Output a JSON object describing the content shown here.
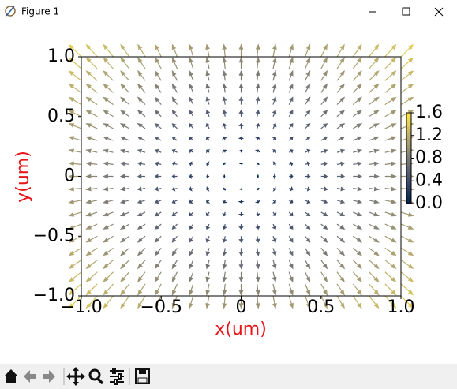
{
  "window_title": "Figure 1",
  "chart_data": {
    "type": "quiver",
    "xlabel": "x(um)",
    "ylabel": "y(um)",
    "xlim": [
      -1,
      1
    ],
    "ylim": [
      -1,
      1
    ],
    "xticks": [
      {
        "value": -1,
        "label": "−1.0"
      },
      {
        "value": -0.5,
        "label": "−0.5"
      },
      0,
      0.5,
      {
        "value": 1,
        "label": "1.0"
      }
    ],
    "yticks": [
      {
        "value": -1,
        "label": "−1.0"
      },
      {
        "value": -0.5,
        "label": "−0.5"
      },
      0,
      0.5,
      {
        "value": 1,
        "label": "1.0"
      }
    ],
    "clim": [
      0,
      1.6
    ],
    "cticks": [
      {
        "value": 0,
        "label": "0.0"
      },
      0.4,
      0.8,
      1.2,
      1.6
    ],
    "x": [
      -1,
      -0.9,
      -0.8,
      -0.7,
      -0.6,
      -0.5,
      -0.4,
      -0.3,
      -0.2,
      -0.1,
      0,
      0.1,
      0.2,
      0.3,
      0.4,
      0.5,
      0.6,
      0.7,
      0.8,
      0.9,
      1
    ],
    "y": [
      -1,
      -0.9,
      -0.8,
      -0.7,
      -0.6,
      -0.5,
      -0.4,
      -0.3,
      -0.2,
      -0.1,
      0,
      0.1,
      0.2,
      0.3,
      0.4,
      0.5,
      0.6,
      0.7,
      0.8,
      0.9,
      1
    ],
    "u": [
      [
        -1,
        -0.9,
        -0.8,
        -0.7,
        -0.6,
        -0.5,
        -0.4,
        -0.3,
        -0.2,
        -0.1,
        0,
        0.1,
        0.2,
        0.3,
        0.4,
        0.5,
        0.6,
        0.7,
        0.8,
        0.9,
        1
      ],
      [
        -1,
        -0.9,
        -0.8,
        -0.7,
        -0.6,
        -0.5,
        -0.4,
        -0.3,
        -0.2,
        -0.1,
        0,
        0.1,
        0.2,
        0.3,
        0.4,
        0.5,
        0.6,
        0.7,
        0.8,
        0.9,
        1
      ],
      [
        -1,
        -0.9,
        -0.8,
        -0.7,
        -0.6,
        -0.5,
        -0.4,
        -0.3,
        -0.2,
        -0.1,
        0,
        0.1,
        0.2,
        0.3,
        0.4,
        0.5,
        0.6,
        0.7,
        0.8,
        0.9,
        1
      ],
      [
        -1,
        -0.9,
        -0.8,
        -0.7,
        -0.6,
        -0.5,
        -0.4,
        -0.3,
        -0.2,
        -0.1,
        0,
        0.1,
        0.2,
        0.3,
        0.4,
        0.5,
        0.6,
        0.7,
        0.8,
        0.9,
        1
      ],
      [
        -1,
        -0.9,
        -0.8,
        -0.7,
        -0.6,
        -0.5,
        -0.4,
        -0.3,
        -0.2,
        -0.1,
        0,
        0.1,
        0.2,
        0.3,
        0.4,
        0.5,
        0.6,
        0.7,
        0.8,
        0.9,
        1
      ],
      [
        -1,
        -0.9,
        -0.8,
        -0.7,
        -0.6,
        -0.5,
        -0.4,
        -0.3,
        -0.2,
        -0.1,
        0,
        0.1,
        0.2,
        0.3,
        0.4,
        0.5,
        0.6,
        0.7,
        0.8,
        0.9,
        1
      ],
      [
        -1,
        -0.9,
        -0.8,
        -0.7,
        -0.6,
        -0.5,
        -0.4,
        -0.3,
        -0.2,
        -0.1,
        0,
        0.1,
        0.2,
        0.3,
        0.4,
        0.5,
        0.6,
        0.7,
        0.8,
        0.9,
        1
      ],
      [
        -1,
        -0.9,
        -0.8,
        -0.7,
        -0.6,
        -0.5,
        -0.4,
        -0.3,
        -0.2,
        -0.1,
        0,
        0.1,
        0.2,
        0.3,
        0.4,
        0.5,
        0.6,
        0.7,
        0.8,
        0.9,
        1
      ],
      [
        -1,
        -0.9,
        -0.8,
        -0.7,
        -0.6,
        -0.5,
        -0.4,
        -0.3,
        -0.2,
        -0.1,
        0,
        0.1,
        0.2,
        0.3,
        0.4,
        0.5,
        0.6,
        0.7,
        0.8,
        0.9,
        1
      ],
      [
        -1,
        -0.9,
        -0.8,
        -0.7,
        -0.6,
        -0.5,
        -0.4,
        -0.3,
        -0.2,
        -0.1,
        0,
        0.1,
        0.2,
        0.3,
        0.4,
        0.5,
        0.6,
        0.7,
        0.8,
        0.9,
        1
      ],
      [
        -1,
        -0.9,
        -0.8,
        -0.7,
        -0.6,
        -0.5,
        -0.4,
        -0.3,
        -0.2,
        -0.1,
        0,
        0.1,
        0.2,
        0.3,
        0.4,
        0.5,
        0.6,
        0.7,
        0.8,
        0.9,
        1
      ],
      [
        -1,
        -0.9,
        -0.8,
        -0.7,
        -0.6,
        -0.5,
        -0.4,
        -0.3,
        -0.2,
        -0.1,
        0,
        0.1,
        0.2,
        0.3,
        0.4,
        0.5,
        0.6,
        0.7,
        0.8,
        0.9,
        1
      ],
      [
        -1,
        -0.9,
        -0.8,
        -0.7,
        -0.6,
        -0.5,
        -0.4,
        -0.3,
        -0.2,
        -0.1,
        0,
        0.1,
        0.2,
        0.3,
        0.4,
        0.5,
        0.6,
        0.7,
        0.8,
        0.9,
        1
      ],
      [
        -1,
        -0.9,
        -0.8,
        -0.7,
        -0.6,
        -0.5,
        -0.4,
        -0.3,
        -0.2,
        -0.1,
        0,
        0.1,
        0.2,
        0.3,
        0.4,
        0.5,
        0.6,
        0.7,
        0.8,
        0.9,
        1
      ],
      [
        -1,
        -0.9,
        -0.8,
        -0.7,
        -0.6,
        -0.5,
        -0.4,
        -0.3,
        -0.2,
        -0.1,
        0,
        0.1,
        0.2,
        0.3,
        0.4,
        0.5,
        0.6,
        0.7,
        0.8,
        0.9,
        1
      ],
      [
        -1,
        -0.9,
        -0.8,
        -0.7,
        -0.6,
        -0.5,
        -0.4,
        -0.3,
        -0.2,
        -0.1,
        0,
        0.1,
        0.2,
        0.3,
        0.4,
        0.5,
        0.6,
        0.7,
        0.8,
        0.9,
        1
      ],
      [
        -1,
        -0.9,
        -0.8,
        -0.7,
        -0.6,
        -0.5,
        -0.4,
        -0.3,
        -0.2,
        -0.1,
        0,
        0.1,
        0.2,
        0.3,
        0.4,
        0.5,
        0.6,
        0.7,
        0.8,
        0.9,
        1
      ],
      [
        -1,
        -0.9,
        -0.8,
        -0.7,
        -0.6,
        -0.5,
        -0.4,
        -0.3,
        -0.2,
        -0.1,
        0,
        0.1,
        0.2,
        0.3,
        0.4,
        0.5,
        0.6,
        0.7,
        0.8,
        0.9,
        1
      ],
      [
        -1,
        -0.9,
        -0.8,
        -0.7,
        -0.6,
        -0.5,
        -0.4,
        -0.3,
        -0.2,
        -0.1,
        0,
        0.1,
        0.2,
        0.3,
        0.4,
        0.5,
        0.6,
        0.7,
        0.8,
        0.9,
        1
      ],
      [
        -1,
        -0.9,
        -0.8,
        -0.7,
        -0.6,
        -0.5,
        -0.4,
        -0.3,
        -0.2,
        -0.1,
        0,
        0.1,
        0.2,
        0.3,
        0.4,
        0.5,
        0.6,
        0.7,
        0.8,
        0.9,
        1
      ],
      [
        -1,
        -0.9,
        -0.8,
        -0.7,
        -0.6,
        -0.5,
        -0.4,
        -0.3,
        -0.2,
        -0.1,
        0,
        0.1,
        0.2,
        0.3,
        0.4,
        0.5,
        0.6,
        0.7,
        0.8,
        0.9,
        1
      ]
    ],
    "v": [
      [
        -1,
        -1,
        -1,
        -1,
        -1,
        -1,
        -1,
        -1,
        -1,
        -1,
        -1,
        -1,
        -1,
        -1,
        -1,
        -1,
        -1,
        -1,
        -1,
        -1,
        -1
      ],
      [
        -0.9,
        -0.9,
        -0.9,
        -0.9,
        -0.9,
        -0.9,
        -0.9,
        -0.9,
        -0.9,
        -0.9,
        -0.9,
        -0.9,
        -0.9,
        -0.9,
        -0.9,
        -0.9,
        -0.9,
        -0.9,
        -0.9,
        -0.9,
        -0.9
      ],
      [
        -0.8,
        -0.8,
        -0.8,
        -0.8,
        -0.8,
        -0.8,
        -0.8,
        -0.8,
        -0.8,
        -0.8,
        -0.8,
        -0.8,
        -0.8,
        -0.8,
        -0.8,
        -0.8,
        -0.8,
        -0.8,
        -0.8,
        -0.8,
        -0.8
      ],
      [
        -0.7,
        -0.7,
        -0.7,
        -0.7,
        -0.7,
        -0.7,
        -0.7,
        -0.7,
        -0.7,
        -0.7,
        -0.7,
        -0.7,
        -0.7,
        -0.7,
        -0.7,
        -0.7,
        -0.7,
        -0.7,
        -0.7,
        -0.7,
        -0.7
      ],
      [
        -0.6,
        -0.6,
        -0.6,
        -0.6,
        -0.6,
        -0.6,
        -0.6,
        -0.6,
        -0.6,
        -0.6,
        -0.6,
        -0.6,
        -0.6,
        -0.6,
        -0.6,
        -0.6,
        -0.6,
        -0.6,
        -0.6,
        -0.6,
        -0.6
      ],
      [
        -0.5,
        -0.5,
        -0.5,
        -0.5,
        -0.5,
        -0.5,
        -0.5,
        -0.5,
        -0.5,
        -0.5,
        -0.5,
        -0.5,
        -0.5,
        -0.5,
        -0.5,
        -0.5,
        -0.5,
        -0.5,
        -0.5,
        -0.5,
        -0.5
      ],
      [
        -0.4,
        -0.4,
        -0.4,
        -0.4,
        -0.4,
        -0.4,
        -0.4,
        -0.4,
        -0.4,
        -0.4,
        -0.4,
        -0.4,
        -0.4,
        -0.4,
        -0.4,
        -0.4,
        -0.4,
        -0.4,
        -0.4,
        -0.4,
        -0.4
      ],
      [
        -0.3,
        -0.3,
        -0.3,
        -0.3,
        -0.3,
        -0.3,
        -0.3,
        -0.3,
        -0.3,
        -0.3,
        -0.3,
        -0.3,
        -0.3,
        -0.3,
        -0.3,
        -0.3,
        -0.3,
        -0.3,
        -0.3,
        -0.3,
        -0.3
      ],
      [
        -0.2,
        -0.2,
        -0.2,
        -0.2,
        -0.2,
        -0.2,
        -0.2,
        -0.2,
        -0.2,
        -0.2,
        -0.2,
        -0.2,
        -0.2,
        -0.2,
        -0.2,
        -0.2,
        -0.2,
        -0.2,
        -0.2,
        -0.2,
        -0.2
      ],
      [
        -0.1,
        -0.1,
        -0.1,
        -0.1,
        -0.1,
        -0.1,
        -0.1,
        -0.1,
        -0.1,
        -0.1,
        -0.1,
        -0.1,
        -0.1,
        -0.1,
        -0.1,
        -0.1,
        -0.1,
        -0.1,
        -0.1,
        -0.1,
        -0.1
      ],
      [
        0,
        0,
        0,
        0,
        0,
        0,
        0,
        0,
        0,
        0,
        0,
        0,
        0,
        0,
        0,
        0,
        0,
        0,
        0,
        0,
        0
      ],
      [
        0.1,
        0.1,
        0.1,
        0.1,
        0.1,
        0.1,
        0.1,
        0.1,
        0.1,
        0.1,
        0.1,
        0.1,
        0.1,
        0.1,
        0.1,
        0.1,
        0.1,
        0.1,
        0.1,
        0.1,
        0.1
      ],
      [
        0.2,
        0.2,
        0.2,
        0.2,
        0.2,
        0.2,
        0.2,
        0.2,
        0.2,
        0.2,
        0.2,
        0.2,
        0.2,
        0.2,
        0.2,
        0.2,
        0.2,
        0.2,
        0.2,
        0.2,
        0.2
      ],
      [
        0.3,
        0.3,
        0.3,
        0.3,
        0.3,
        0.3,
        0.3,
        0.3,
        0.3,
        0.3,
        0.3,
        0.3,
        0.3,
        0.3,
        0.3,
        0.3,
        0.3,
        0.3,
        0.3,
        0.3,
        0.3
      ],
      [
        0.4,
        0.4,
        0.4,
        0.4,
        0.4,
        0.4,
        0.4,
        0.4,
        0.4,
        0.4,
        0.4,
        0.4,
        0.4,
        0.4,
        0.4,
        0.4,
        0.4,
        0.4,
        0.4,
        0.4,
        0.4
      ],
      [
        0.5,
        0.5,
        0.5,
        0.5,
        0.5,
        0.5,
        0.5,
        0.5,
        0.5,
        0.5,
        0.5,
        0.5,
        0.5,
        0.5,
        0.5,
        0.5,
        0.5,
        0.5,
        0.5,
        0.5,
        0.5
      ],
      [
        0.6,
        0.6,
        0.6,
        0.6,
        0.6,
        0.6,
        0.6,
        0.6,
        0.6,
        0.6,
        0.6,
        0.6,
        0.6,
        0.6,
        0.6,
        0.6,
        0.6,
        0.6,
        0.6,
        0.6,
        0.6
      ],
      [
        0.7,
        0.7,
        0.7,
        0.7,
        0.7,
        0.7,
        0.7,
        0.7,
        0.7,
        0.7,
        0.7,
        0.7,
        0.7,
        0.7,
        0.7,
        0.7,
        0.7,
        0.7,
        0.7,
        0.7,
        0.7
      ],
      [
        0.8,
        0.8,
        0.8,
        0.8,
        0.8,
        0.8,
        0.8,
        0.8,
        0.8,
        0.8,
        0.8,
        0.8,
        0.8,
        0.8,
        0.8,
        0.8,
        0.8,
        0.8,
        0.8,
        0.8,
        0.8
      ],
      [
        0.9,
        0.9,
        0.9,
        0.9,
        0.9,
        0.9,
        0.9,
        0.9,
        0.9,
        0.9,
        0.9,
        0.9,
        0.9,
        0.9,
        0.9,
        0.9,
        0.9,
        0.9,
        0.9,
        0.9,
        0.9
      ],
      [
        1,
        1,
        1,
        1,
        1,
        1,
        1,
        1,
        1,
        1,
        1,
        1,
        1,
        1,
        1,
        1,
        1,
        1,
        1,
        1,
        1
      ]
    ]
  }
}
